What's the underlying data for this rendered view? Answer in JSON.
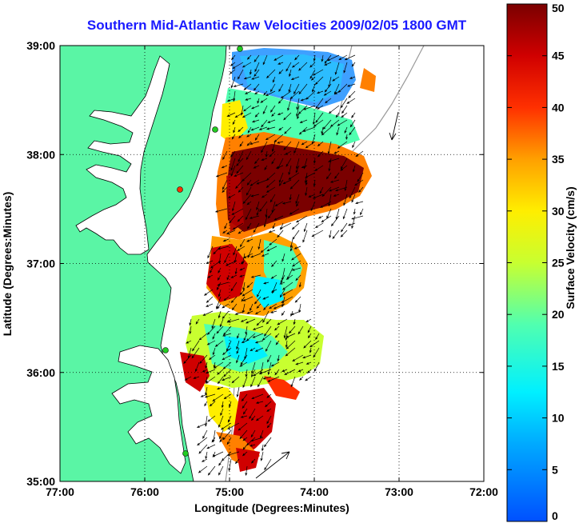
{
  "title": "Southern Mid-Atlantic Raw Velocities 2009/02/05 1800 GMT",
  "xaxis": {
    "label": "Longitude (Degrees:Minutes)",
    "ticks": [
      "77:00",
      "76:00",
      "75:00",
      "74:00",
      "73:00",
      "72:00"
    ],
    "range": [
      -77,
      -72
    ]
  },
  "yaxis": {
    "label": "Latitude (Degrees:Minutes)",
    "ticks": [
      "39:00",
      "38:00",
      "37:00",
      "36:00",
      "35:00"
    ],
    "range": [
      35,
      39
    ]
  },
  "colorbar": {
    "label": "Surface Velocity (cm/s)",
    "ticks": [
      "50",
      "45",
      "40",
      "35",
      "30",
      "25",
      "20",
      "15",
      "10",
      "5",
      "0"
    ],
    "range": [
      0,
      50
    ]
  },
  "colors": {
    "land": "#5af5a5",
    "title": "#1a1aff",
    "grid": "#000000",
    "station": "#22cc22",
    "station_alt": "#ff3300"
  }
}
